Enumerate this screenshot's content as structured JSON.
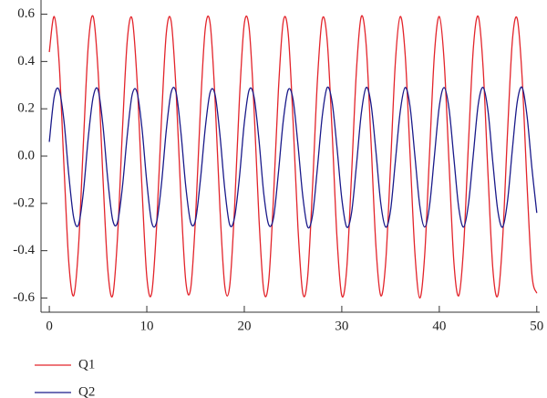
{
  "chart_data": {
    "type": "line",
    "x": [
      0,
      0.5,
      1,
      1.5,
      2,
      2.5,
      3,
      3.5,
      4,
      4.5,
      5,
      5.5,
      6,
      6.5,
      7,
      7.5,
      8,
      8.5,
      9,
      9.5,
      10,
      10.5,
      11,
      11.5,
      12,
      12.5,
      13,
      13.5,
      14,
      14.5,
      15,
      15.5,
      16,
      16.5,
      17,
      17.5,
      18,
      18.5,
      19,
      19.5,
      20,
      20.5,
      21,
      21.5,
      22,
      22.5,
      23,
      23.5,
      24,
      24.5,
      25,
      25.5,
      26,
      26.5,
      27,
      27.5,
      28,
      28.5,
      29,
      29.5,
      30,
      30.5,
      31,
      31.5,
      32,
      32.5,
      33,
      33.5,
      34,
      34.5,
      35,
      35.5,
      36,
      36.5,
      37,
      37.5,
      38,
      38.5,
      39,
      39.5,
      40,
      40.5,
      41,
      41.5,
      42,
      42.5,
      43,
      43.5,
      44,
      44.5,
      45,
      45.5,
      46,
      46.5,
      47,
      47.5,
      48,
      48.5,
      49,
      49.5,
      50
    ],
    "series": [
      {
        "name": "Q1",
        "color": "#e3242b",
        "values": [
          0.44,
          0.59,
          0.4,
          -0.04,
          -0.45,
          -0.59,
          -0.38,
          0.06,
          0.47,
          0.59,
          0.36,
          -0.09,
          -0.48,
          -0.59,
          -0.34,
          0.11,
          0.49,
          0.58,
          0.32,
          -0.13,
          -0.51,
          -0.58,
          -0.3,
          0.15,
          0.52,
          0.57,
          0.28,
          -0.18,
          -0.53,
          -0.56,
          -0.26,
          0.2,
          0.54,
          0.56,
          0.24,
          -0.22,
          -0.55,
          -0.55,
          -0.22,
          0.24,
          0.56,
          0.54,
          0.2,
          -0.26,
          -0.57,
          -0.53,
          -0.17,
          0.28,
          0.57,
          0.52,
          0.15,
          -0.3,
          -0.58,
          -0.51,
          -0.13,
          0.32,
          0.58,
          0.49,
          0.11,
          -0.34,
          -0.59,
          -0.48,
          -0.08,
          0.36,
          0.59,
          0.47,
          0.06,
          -0.38,
          -0.59,
          -0.45,
          -0.04,
          0.4,
          0.59,
          0.43,
          0.01,
          -0.41,
          -0.6,
          -0.42,
          0.01,
          0.43,
          0.59,
          0.4,
          -0.03,
          -0.45,
          -0.59,
          -0.38,
          0.06,
          0.46,
          0.59,
          0.37,
          -0.08,
          -0.48,
          -0.59,
          -0.35,
          0.1,
          0.49,
          0.58,
          0.33,
          -0.12,
          -0.5,
          -0.58
        ]
      },
      {
        "name": "Q2",
        "color": "#1a1a8a",
        "values": [
          0.06,
          0.25,
          0.28,
          0.15,
          -0.08,
          -0.26,
          -0.29,
          -0.15,
          0.08,
          0.25,
          0.28,
          0.13,
          -0.1,
          -0.27,
          -0.28,
          -0.13,
          0.09,
          0.26,
          0.27,
          0.12,
          -0.11,
          -0.28,
          -0.28,
          -0.12,
          0.11,
          0.27,
          0.27,
          0.1,
          -0.13,
          -0.28,
          -0.27,
          -0.1,
          0.12,
          0.27,
          0.26,
          0.09,
          -0.14,
          -0.29,
          -0.26,
          -0.09,
          0.14,
          0.28,
          0.25,
          0.07,
          -0.16,
          -0.29,
          -0.26,
          -0.07,
          0.15,
          0.28,
          0.24,
          0.05,
          -0.17,
          -0.3,
          -0.25,
          -0.05,
          0.17,
          0.29,
          0.23,
          0.04,
          -0.18,
          -0.3,
          -0.24,
          -0.04,
          0.18,
          0.29,
          0.22,
          0.02,
          -0.2,
          -0.3,
          -0.23,
          -0.02,
          0.19,
          0.29,
          0.21,
          0.0,
          -0.21,
          -0.3,
          -0.21,
          0.0,
          0.21,
          0.29,
          0.2,
          -0.01,
          -0.22,
          -0.3,
          -0.2,
          0.01,
          0.22,
          0.29,
          0.19,
          -0.03,
          -0.23,
          -0.3,
          -0.19,
          0.03,
          0.23,
          0.29,
          0.17,
          -0.05,
          -0.24
        ]
      }
    ],
    "xlim": [
      -0.85,
      50.3
    ],
    "ylim": [
      -0.66,
      0.66
    ],
    "xticks": [
      0,
      10,
      20,
      30,
      40,
      50
    ],
    "yticks": [
      {
        "value": -0.6,
        "label": "-0.6"
      },
      {
        "value": -0.4,
        "label": "-0.4"
      },
      {
        "value": -0.2,
        "label": "-0.2"
      },
      {
        "value": 0,
        "label": "0.0"
      },
      {
        "value": 0.2,
        "label": "0.2"
      },
      {
        "value": 0.4,
        "label": "0.4"
      },
      {
        "value": 0.6,
        "label": "0.6"
      }
    ],
    "grid": false,
    "legend": "bottom-left"
  }
}
